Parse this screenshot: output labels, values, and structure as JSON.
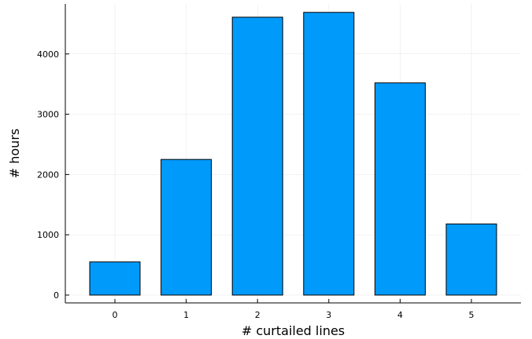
{
  "chart_data": {
    "type": "bar",
    "categories": [
      "0",
      "1",
      "2",
      "3",
      "4",
      "5"
    ],
    "values": [
      550,
      2250,
      4610,
      4690,
      3520,
      1180
    ],
    "title": "",
    "xlabel": "# curtailed lines",
    "ylabel": "# hours",
    "ylim": [
      -130,
      4830
    ],
    "yticks": [
      0,
      1000,
      2000,
      3000,
      4000
    ],
    "grid": true,
    "legend": "none",
    "bar_color": "#009AFA",
    "bar_edge_color": "#000000"
  }
}
